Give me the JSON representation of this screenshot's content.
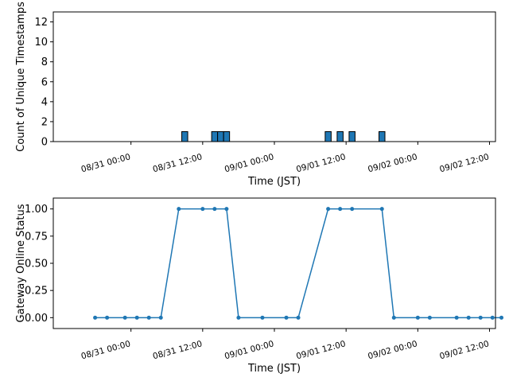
{
  "colors": {
    "bar": "#1f77b4",
    "bar_edge": "#000000",
    "line": "#1f77b4",
    "axes": "#000000"
  },
  "chart_data": [
    {
      "type": "bar",
      "xlabel": "Time (JST)",
      "ylabel": "Count of Unique Timestamps",
      "ylim": [
        0,
        13
      ],
      "yticks": [
        0,
        2,
        4,
        6,
        8,
        10,
        12
      ],
      "xlim": [
        "08/30 11:00",
        "09/02 13:00"
      ],
      "xticks": [
        "08/31 00:00",
        "08/31 12:00",
        "09/01 00:00",
        "09/01 12:00",
        "09/02 00:00",
        "09/02 12:00"
      ],
      "bar_width_hours": 1,
      "grid": false,
      "bars": [
        {
          "t": "08/31 09:00",
          "value": 1
        },
        {
          "t": "08/31 14:00",
          "value": 1
        },
        {
          "t": "08/31 15:00",
          "value": 1
        },
        {
          "t": "08/31 16:00",
          "value": 1
        },
        {
          "t": "09/01 09:00",
          "value": 1
        },
        {
          "t": "09/01 11:00",
          "value": 1
        },
        {
          "t": "09/01 13:00",
          "value": 1
        },
        {
          "t": "09/01 18:00",
          "value": 1
        }
      ]
    },
    {
      "type": "line",
      "xlabel": "Time (JST)",
      "ylabel": "Gateway Online Status",
      "ylim": [
        -0.1,
        1.1
      ],
      "yticks": [
        "0.00",
        "0.25",
        "0.50",
        "0.75",
        "1.00"
      ],
      "xlim": [
        "08/30 11:00",
        "09/02 13:00"
      ],
      "xticks": [
        "08/31 00:00",
        "08/31 12:00",
        "09/01 00:00",
        "09/01 12:00",
        "09/02 00:00",
        "09/02 12:00"
      ],
      "grid": false,
      "points": [
        {
          "t": "08/30 18:00",
          "value": 0
        },
        {
          "t": "08/30 20:00",
          "value": 0
        },
        {
          "t": "08/30 23:00",
          "value": 0
        },
        {
          "t": "08/31 01:00",
          "value": 0
        },
        {
          "t": "08/31 03:00",
          "value": 0
        },
        {
          "t": "08/31 05:00",
          "value": 0
        },
        {
          "t": "08/31 08:00",
          "value": 1
        },
        {
          "t": "08/31 12:00",
          "value": 1
        },
        {
          "t": "08/31 14:00",
          "value": 1
        },
        {
          "t": "08/31 16:00",
          "value": 1
        },
        {
          "t": "08/31 18:00",
          "value": 0
        },
        {
          "t": "08/31 22:00",
          "value": 0
        },
        {
          "t": "09/01 02:00",
          "value": 0
        },
        {
          "t": "09/01 04:00",
          "value": 0
        },
        {
          "t": "09/01 09:00",
          "value": 1
        },
        {
          "t": "09/01 11:00",
          "value": 1
        },
        {
          "t": "09/01 13:00",
          "value": 1
        },
        {
          "t": "09/01 18:00",
          "value": 1
        },
        {
          "t": "09/01 20:00",
          "value": 0
        },
        {
          "t": "09/02 00:00",
          "value": 0
        },
        {
          "t": "09/02 02:00",
          "value": 0
        },
        {
          "t": "09/02 06:30",
          "value": 0
        },
        {
          "t": "09/02 08:30",
          "value": 0
        },
        {
          "t": "09/02 10:30",
          "value": 0
        },
        {
          "t": "09/02 12:30",
          "value": 0
        },
        {
          "t": "09/02 14:00",
          "value": 0
        }
      ]
    }
  ]
}
